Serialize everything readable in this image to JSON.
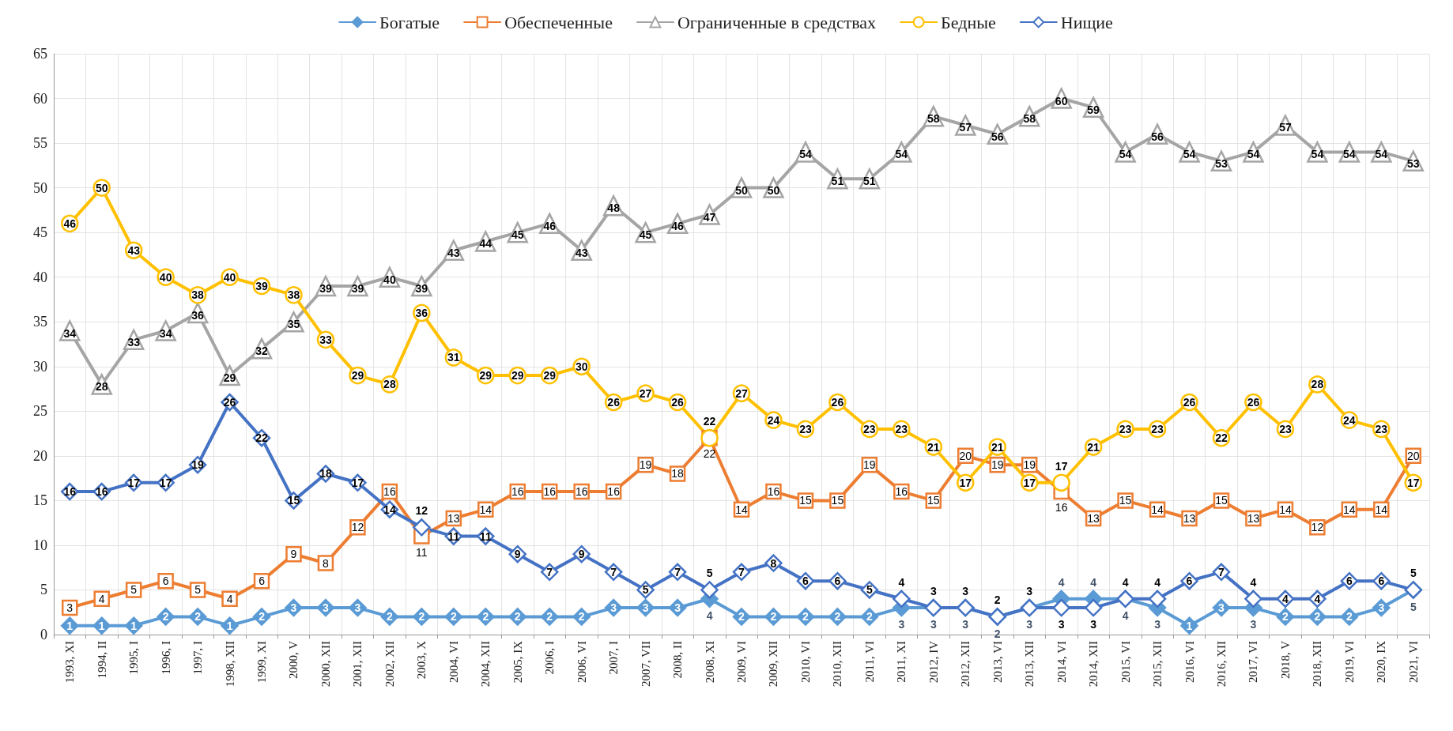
{
  "chart_data": {
    "type": "line",
    "categories": [
      "1993, XI",
      "1994, II",
      "1995, I",
      "1996, I",
      "1997, I",
      "1998, XII",
      "1999, XI",
      "2000, V",
      "2000, XII",
      "2001, XII",
      "2002, XII",
      "2003, X",
      "2004, VI",
      "2004, XII",
      "2005, IX",
      "2006, I",
      "2006, VI",
      "2007, I",
      "2007, VII",
      "2008, II",
      "2008, XI",
      "2009, VI",
      "2009, XII",
      "2010, VI",
      "2010, XII",
      "2011, VI",
      "2011, XI",
      "2012, IV",
      "2012, XII",
      "2013, VI",
      "2013, XII",
      "2014, VI",
      "2014, XII",
      "2015, VI",
      "2015, XII",
      "2016, VI",
      "2016, XII",
      "2017, VI",
      "2018, V",
      "2018, XII",
      "2019, VI",
      "2020, IX",
      "2021, VI"
    ],
    "series": [
      {
        "name": "Богатые",
        "color": "#5b9bd5",
        "marker": "diamond",
        "values": [
          1,
          1,
          1,
          2,
          2,
          1,
          2,
          3,
          3,
          3,
          2,
          2,
          2,
          2,
          2,
          2,
          2,
          3,
          3,
          3,
          4,
          2,
          2,
          2,
          2,
          2,
          3,
          3,
          3,
          2,
          3,
          4,
          4,
          4,
          3,
          1,
          3,
          3,
          2,
          2,
          2,
          3,
          5
        ]
      },
      {
        "name": "Обеспеченные",
        "color": "#ed7d31",
        "marker": "square",
        "values": [
          3,
          4,
          5,
          6,
          5,
          4,
          6,
          9,
          8,
          12,
          16,
          11,
          13,
          14,
          16,
          16,
          16,
          16,
          19,
          18,
          22,
          14,
          16,
          15,
          15,
          19,
          16,
          15,
          20,
          19,
          19,
          16,
          13,
          15,
          14,
          13,
          15,
          13,
          14,
          12,
          14,
          14,
          20
        ]
      },
      {
        "name": "Ограниченные в средствах",
        "color": "#a5a5a5",
        "marker": "triangle",
        "values": [
          34,
          28,
          33,
          34,
          36,
          29,
          32,
          35,
          39,
          39,
          40,
          39,
          43,
          44,
          45,
          46,
          43,
          48,
          45,
          46,
          47,
          50,
          50,
          54,
          51,
          51,
          54,
          58,
          57,
          56,
          58,
          60,
          59,
          54,
          56,
          54,
          53,
          54,
          57,
          54,
          54,
          54,
          53
        ]
      },
      {
        "name": "Бедные",
        "color": "#ffc000",
        "marker": "circle",
        "values": [
          46,
          50,
          43,
          40,
          38,
          40,
          39,
          38,
          33,
          29,
          28,
          36,
          31,
          29,
          29,
          29,
          30,
          26,
          27,
          26,
          22,
          27,
          24,
          23,
          26,
          23,
          23,
          21,
          17,
          21,
          17,
          17,
          21,
          23,
          23,
          26,
          22,
          26,
          23,
          28,
          24,
          23,
          17
        ]
      },
      {
        "name": "Нищие",
        "color": "#4472c4",
        "marker": "diamond",
        "values": [
          16,
          16,
          17,
          17,
          19,
          26,
          22,
          15,
          18,
          17,
          14,
          12,
          11,
          11,
          9,
          7,
          9,
          7,
          5,
          7,
          5,
          7,
          8,
          6,
          6,
          5,
          4,
          3,
          3,
          2,
          3,
          3,
          3,
          4,
          4,
          6,
          7,
          4,
          4,
          4,
          6,
          6,
          5
        ]
      }
    ],
    "ylim": [
      0,
      65
    ],
    "yticks": [
      0,
      5,
      10,
      15,
      20,
      25,
      30,
      35,
      40,
      45,
      50,
      55,
      60,
      65
    ],
    "grid": true,
    "legend": "top",
    "data_labels": true
  }
}
